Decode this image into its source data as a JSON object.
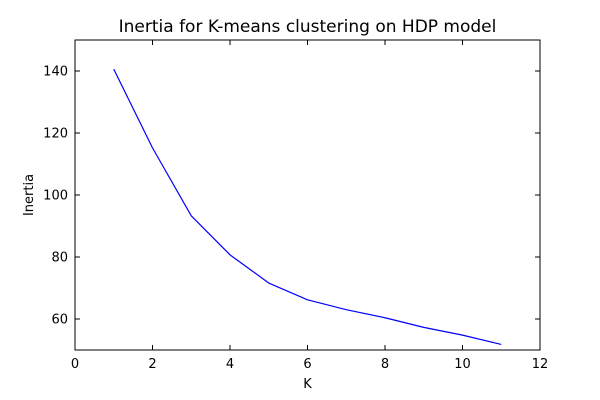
{
  "chart_data": {
    "type": "line",
    "title": "Inertia for K-means clustering on HDP model",
    "xlabel": "K",
    "ylabel": "Inertia",
    "xlim": [
      0,
      12
    ],
    "ylim": [
      50,
      150
    ],
    "xticks": [
      0,
      2,
      4,
      6,
      8,
      10,
      12
    ],
    "yticks": [
      60,
      80,
      100,
      120,
      140
    ],
    "grid": false,
    "legend": "none",
    "series": [
      {
        "color": "#0000ff",
        "x": [
          1,
          2,
          3,
          4,
          5,
          6,
          7,
          8,
          9,
          10,
          11
        ],
        "y": [
          140.6,
          115.2,
          93.3,
          80.7,
          71.6,
          66.2,
          63.0,
          60.4,
          57.3,
          54.8,
          51.8
        ]
      }
    ]
  }
}
